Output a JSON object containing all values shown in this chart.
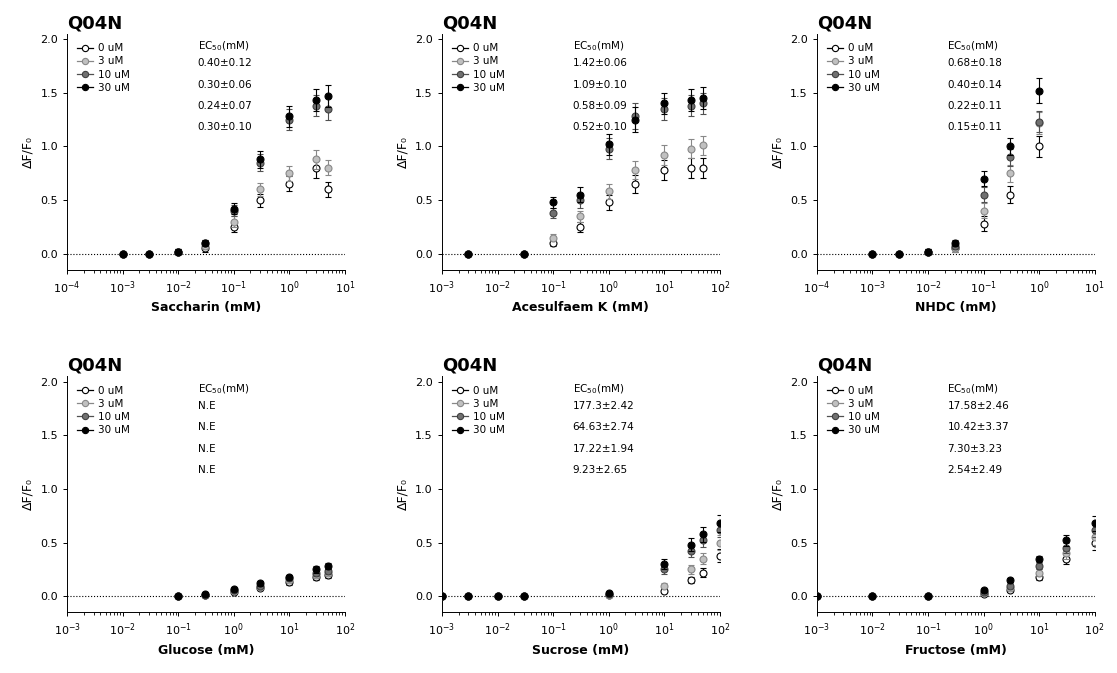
{
  "title": "Q04N",
  "ylabel": "ΔF/F₀",
  "subplots": [
    {
      "xlabel": "Saccharin (mM)",
      "xlim_log": [
        0.0001,
        10
      ],
      "ec50_values": [
        "0.40±0.12",
        "0.30±0.06",
        "0.24±0.07",
        "0.30±0.10"
      ],
      "series": [
        {
          "x": [
            0.001,
            0.003,
            0.01,
            0.03,
            0.1,
            0.3,
            1,
            3,
            5
          ],
          "y": [
            0,
            0,
            0.02,
            0.05,
            0.25,
            0.5,
            0.65,
            0.8,
            0.6
          ],
          "yerr": [
            0.01,
            0.01,
            0.02,
            0.03,
            0.05,
            0.06,
            0.07,
            0.09,
            0.07
          ]
        },
        {
          "x": [
            0.001,
            0.003,
            0.01,
            0.03,
            0.1,
            0.3,
            1,
            3,
            5
          ],
          "y": [
            0,
            0,
            0.02,
            0.07,
            0.3,
            0.6,
            0.75,
            0.88,
            0.8
          ],
          "yerr": [
            0.01,
            0.01,
            0.02,
            0.03,
            0.05,
            0.06,
            0.07,
            0.09,
            0.07
          ]
        },
        {
          "x": [
            0.001,
            0.003,
            0.01,
            0.03,
            0.1,
            0.3,
            1,
            3,
            5
          ],
          "y": [
            0,
            0,
            0.02,
            0.1,
            0.4,
            0.85,
            1.25,
            1.38,
            1.35
          ],
          "yerr": [
            0.01,
            0.01,
            0.02,
            0.03,
            0.05,
            0.08,
            0.1,
            0.1,
            0.1
          ]
        },
        {
          "x": [
            0.001,
            0.003,
            0.01,
            0.03,
            0.1,
            0.3,
            1,
            3,
            5
          ],
          "y": [
            0,
            0,
            0.02,
            0.1,
            0.42,
            0.88,
            1.28,
            1.43,
            1.47
          ],
          "yerr": [
            0.01,
            0.01,
            0.02,
            0.03,
            0.05,
            0.08,
            0.1,
            0.1,
            0.1
          ]
        }
      ]
    },
    {
      "xlabel": "Acesulfaem K (mM)",
      "xlim_log": [
        0.001,
        100
      ],
      "ec50_values": [
        "1.42±0.06",
        "1.09±0.10",
        "0.58±0.09",
        "0.52±0.10"
      ],
      "series": [
        {
          "x": [
            0.003,
            0.03,
            0.1,
            0.3,
            1,
            3,
            10,
            30,
            50
          ],
          "y": [
            0,
            0,
            0.1,
            0.25,
            0.48,
            0.65,
            0.78,
            0.8,
            0.8
          ],
          "yerr": [
            0.01,
            0.01,
            0.03,
            0.05,
            0.07,
            0.08,
            0.09,
            0.09,
            0.09
          ]
        },
        {
          "x": [
            0.003,
            0.03,
            0.1,
            0.3,
            1,
            3,
            10,
            30,
            50
          ],
          "y": [
            0,
            0,
            0.15,
            0.35,
            0.58,
            0.78,
            0.92,
            0.98,
            1.01
          ],
          "yerr": [
            0.01,
            0.01,
            0.03,
            0.05,
            0.07,
            0.08,
            0.09,
            0.09,
            0.09
          ]
        },
        {
          "x": [
            0.003,
            0.03,
            0.1,
            0.3,
            1,
            3,
            10,
            30,
            50
          ],
          "y": [
            0,
            0,
            0.38,
            0.5,
            0.98,
            1.28,
            1.35,
            1.38,
            1.4
          ],
          "yerr": [
            0.01,
            0.01,
            0.05,
            0.07,
            0.1,
            0.12,
            0.1,
            0.1,
            0.1
          ]
        },
        {
          "x": [
            0.003,
            0.03,
            0.1,
            0.3,
            1,
            3,
            10,
            30,
            50
          ],
          "y": [
            0,
            0,
            0.48,
            0.55,
            1.02,
            1.25,
            1.4,
            1.43,
            1.45
          ],
          "yerr": [
            0.01,
            0.01,
            0.05,
            0.07,
            0.1,
            0.12,
            0.1,
            0.1,
            0.1
          ]
        }
      ]
    },
    {
      "xlabel": "NHDC (mM)",
      "xlim_log": [
        0.0001,
        10
      ],
      "ec50_values": [
        "0.68±0.18",
        "0.40±0.14",
        "0.22±0.11",
        "0.15±0.11"
      ],
      "series": [
        {
          "x": [
            0.001,
            0.003,
            0.01,
            0.03,
            0.1,
            0.3,
            1
          ],
          "y": [
            0,
            0,
            0.02,
            0.05,
            0.28,
            0.55,
            1.0
          ],
          "yerr": [
            0.01,
            0.01,
            0.02,
            0.03,
            0.07,
            0.08,
            0.1
          ]
        },
        {
          "x": [
            0.001,
            0.003,
            0.01,
            0.03,
            0.1,
            0.3,
            1
          ],
          "y": [
            0,
            0,
            0.02,
            0.05,
            0.4,
            0.75,
            1.22
          ],
          "yerr": [
            0.01,
            0.01,
            0.02,
            0.03,
            0.07,
            0.08,
            0.1
          ]
        },
        {
          "x": [
            0.001,
            0.003,
            0.01,
            0.03,
            0.1,
            0.3,
            1
          ],
          "y": [
            0,
            0,
            0.02,
            0.07,
            0.55,
            0.9,
            1.23
          ],
          "yerr": [
            0.01,
            0.01,
            0.02,
            0.03,
            0.07,
            0.08,
            0.1
          ]
        },
        {
          "x": [
            0.001,
            0.003,
            0.01,
            0.03,
            0.1,
            0.3,
            1
          ],
          "y": [
            0,
            0,
            0.02,
            0.1,
            0.7,
            1.0,
            1.52
          ],
          "yerr": [
            0.01,
            0.01,
            0.02,
            0.03,
            0.07,
            0.08,
            0.12
          ]
        }
      ]
    },
    {
      "xlabel": "Glucose (mM)",
      "xlim_log": [
        0.001,
        100
      ],
      "ec50_values": [
        "N.E",
        "N.E",
        "N.E",
        "N.E"
      ],
      "series": [
        {
          "x": [
            0.1,
            0.3,
            1,
            3,
            10,
            30,
            50
          ],
          "y": [
            0,
            0.01,
            0.04,
            0.08,
            0.13,
            0.18,
            0.2
          ],
          "yerr": [
            0.01,
            0.01,
            0.01,
            0.02,
            0.02,
            0.03,
            0.03
          ]
        },
        {
          "x": [
            0.1,
            0.3,
            1,
            3,
            10,
            30,
            50
          ],
          "y": [
            0,
            0.01,
            0.05,
            0.09,
            0.15,
            0.2,
            0.22
          ],
          "yerr": [
            0.01,
            0.01,
            0.01,
            0.02,
            0.02,
            0.03,
            0.03
          ]
        },
        {
          "x": [
            0.1,
            0.3,
            1,
            3,
            10,
            30,
            50
          ],
          "y": [
            0,
            0.01,
            0.06,
            0.1,
            0.17,
            0.22,
            0.24
          ],
          "yerr": [
            0.01,
            0.01,
            0.01,
            0.02,
            0.02,
            0.03,
            0.03
          ]
        },
        {
          "x": [
            0.1,
            0.3,
            1,
            3,
            10,
            30,
            50
          ],
          "y": [
            0,
            0.02,
            0.07,
            0.12,
            0.18,
            0.25,
            0.28
          ],
          "yerr": [
            0.01,
            0.01,
            0.01,
            0.02,
            0.02,
            0.03,
            0.03
          ]
        }
      ]
    },
    {
      "xlabel": "Sucrose (mM)",
      "xlim_log": [
        0.001,
        100
      ],
      "ec50_values": [
        "177.3±2.42",
        "64.63±2.74",
        "17.22±1.94",
        "9.23±2.65"
      ],
      "series": [
        {
          "x": [
            0.001,
            0.003,
            0.01,
            0.03,
            1,
            10,
            30,
            50,
            100
          ],
          "y": [
            0,
            0,
            0,
            0,
            0.01,
            0.05,
            0.15,
            0.22,
            0.38
          ],
          "yerr": [
            0.005,
            0.005,
            0.005,
            0.005,
            0.01,
            0.02,
            0.03,
            0.04,
            0.06
          ]
        },
        {
          "x": [
            0.001,
            0.003,
            0.01,
            0.03,
            1,
            10,
            30,
            50,
            100
          ],
          "y": [
            0,
            0,
            0,
            0,
            0.01,
            0.1,
            0.25,
            0.35,
            0.5
          ],
          "yerr": [
            0.005,
            0.005,
            0.005,
            0.005,
            0.01,
            0.02,
            0.04,
            0.05,
            0.07
          ]
        },
        {
          "x": [
            0.001,
            0.003,
            0.01,
            0.03,
            1,
            10,
            30,
            50,
            100
          ],
          "y": [
            0,
            0,
            0,
            0,
            0.02,
            0.25,
            0.42,
            0.52,
            0.62
          ],
          "yerr": [
            0.005,
            0.005,
            0.005,
            0.005,
            0.01,
            0.04,
            0.05,
            0.06,
            0.07
          ]
        },
        {
          "x": [
            0.001,
            0.003,
            0.01,
            0.03,
            1,
            10,
            30,
            50,
            100
          ],
          "y": [
            0,
            0,
            0,
            0,
            0.03,
            0.3,
            0.48,
            0.58,
            0.68
          ],
          "yerr": [
            0.005,
            0.005,
            0.005,
            0.005,
            0.01,
            0.05,
            0.06,
            0.07,
            0.08
          ]
        }
      ]
    },
    {
      "xlabel": "Fructose (mM)",
      "xlim_log": [
        0.001,
        100
      ],
      "ec50_values": [
        "17.58±2.46",
        "10.42±3.37",
        "7.30±3.23",
        "2.54±2.49"
      ],
      "series": [
        {
          "x": [
            0.001,
            0.01,
            0.1,
            1,
            3,
            10,
            30,
            100
          ],
          "y": [
            0,
            0,
            0,
            0.02,
            0.06,
            0.18,
            0.35,
            0.5
          ],
          "yerr": [
            0.005,
            0.005,
            0.005,
            0.01,
            0.02,
            0.03,
            0.05,
            0.07
          ]
        },
        {
          "x": [
            0.001,
            0.01,
            0.1,
            1,
            3,
            10,
            30,
            100
          ],
          "y": [
            0,
            0,
            0,
            0.03,
            0.08,
            0.22,
            0.4,
            0.55
          ],
          "yerr": [
            0.005,
            0.005,
            0.005,
            0.01,
            0.02,
            0.03,
            0.05,
            0.07
          ]
        },
        {
          "x": [
            0.001,
            0.01,
            0.1,
            1,
            3,
            10,
            30,
            100
          ],
          "y": [
            0,
            0,
            0,
            0.04,
            0.1,
            0.28,
            0.45,
            0.62
          ],
          "yerr": [
            0.005,
            0.005,
            0.005,
            0.01,
            0.02,
            0.03,
            0.05,
            0.07
          ]
        },
        {
          "x": [
            0.001,
            0.01,
            0.1,
            1,
            3,
            10,
            30,
            100
          ],
          "y": [
            0,
            0,
            0,
            0.06,
            0.15,
            0.35,
            0.52,
            0.68
          ],
          "yerr": [
            0.005,
            0.005,
            0.005,
            0.01,
            0.02,
            0.03,
            0.05,
            0.07
          ]
        }
      ]
    }
  ],
  "legend_items": [
    "0 uM",
    "3 uM",
    "10 uM",
    "30 uM"
  ],
  "ylim": [
    -0.15,
    2.05
  ],
  "yticks": [
    0.0,
    0.5,
    1.0,
    1.5,
    2.0
  ],
  "background_color": "#ffffff",
  "title_fontsize": 13,
  "label_fontsize": 9,
  "tick_fontsize": 8,
  "legend_fontsize": 7.5
}
